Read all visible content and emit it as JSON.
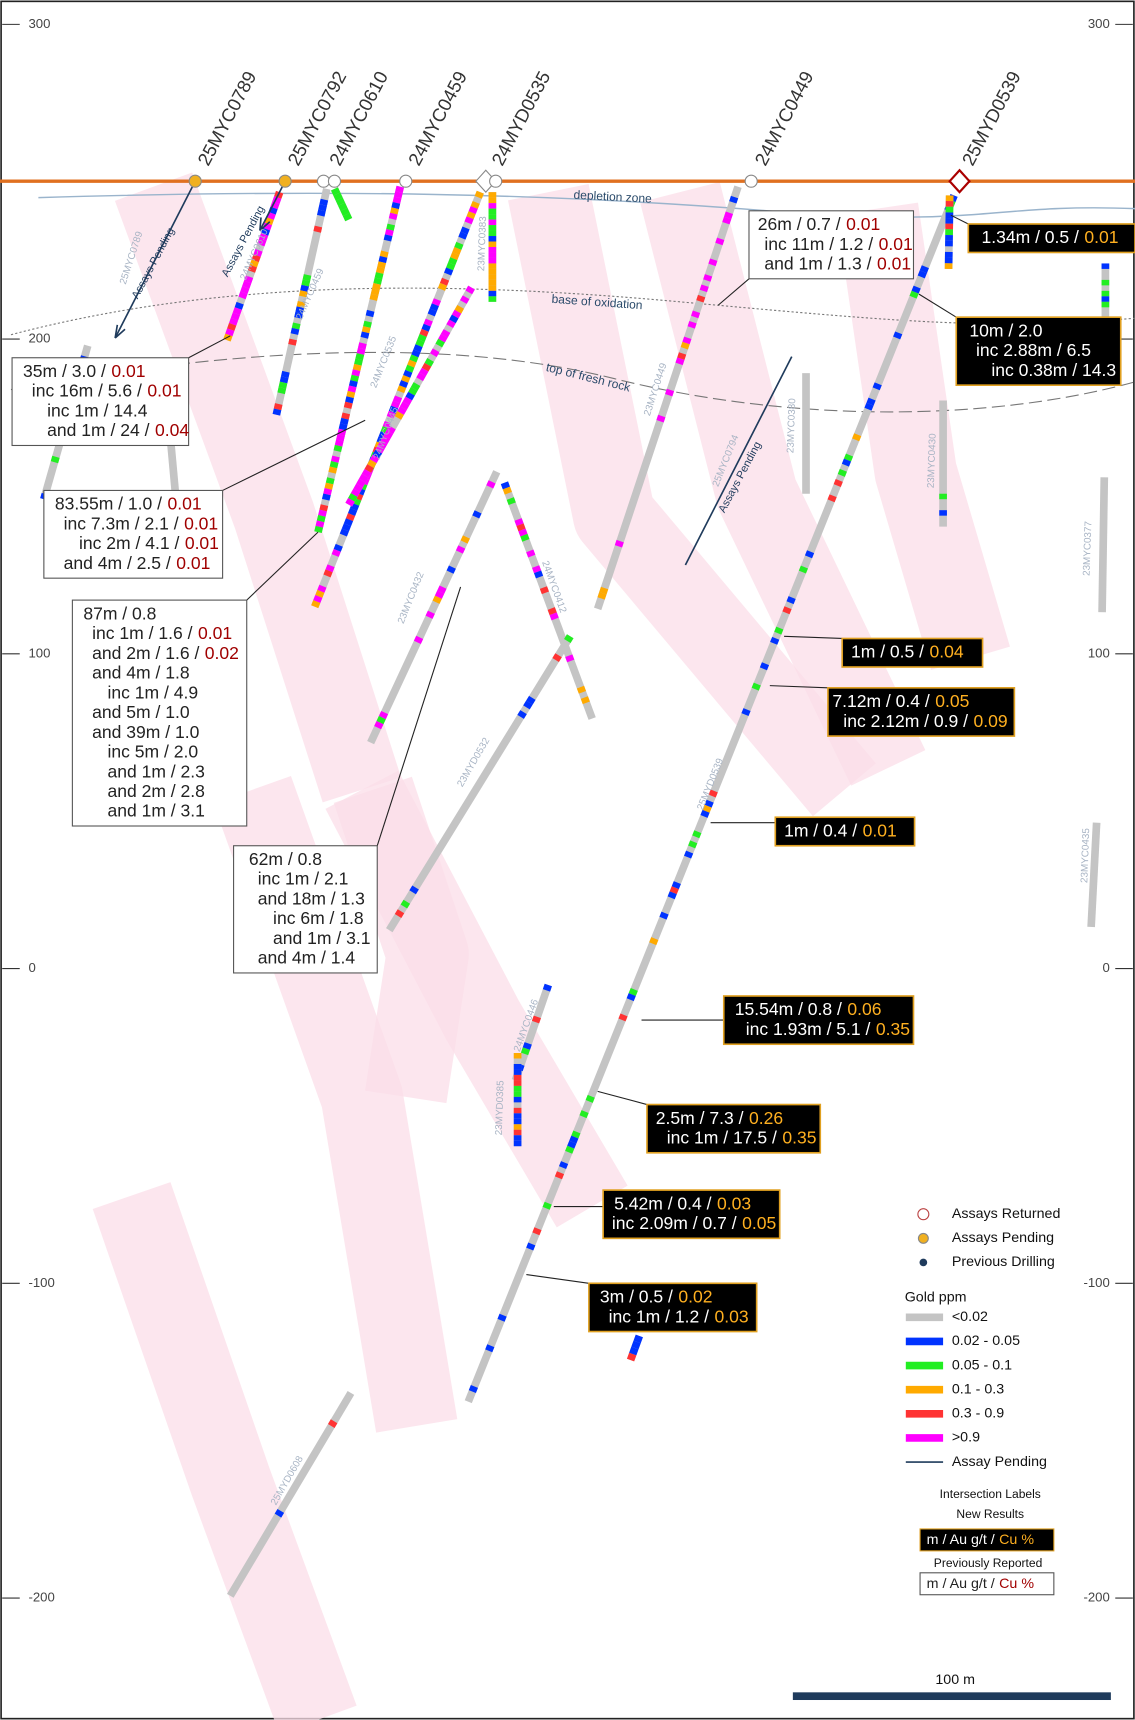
{
  "elevation_ticks": [
    300,
    200,
    100,
    0,
    -100,
    -200
  ],
  "collars": [
    "25MYC0789",
    "25MYC0792",
    "24MYC0610",
    "24MYC0459",
    "24MYD0535",
    "24MYC0449",
    "25MYD0539"
  ],
  "hole_labels": [
    "25MYC0789",
    "24MYC0610",
    "24MYC0459",
    "24MYC0535",
    "24MYC0445",
    "23MYC0383",
    "23MYC0432",
    "24MYC0412",
    "23MYD0532",
    "23MYC0449",
    "25MYC0794",
    "23MYC0380",
    "23MYC0430",
    "23MYC0377",
    "25MYD0539",
    "23MYC0435",
    "24MYC0446",
    "23MYD0385",
    "25MYD0608"
  ],
  "annotations": {
    "depletion": "depletion zone",
    "oxidation": "base of oxidation",
    "fresh": "top of fresh rock",
    "pending": "Assays Pending"
  },
  "intersections": [
    {
      "lines": [
        {
          "main": "1.34m / 0.5 /",
          "cu": "0.01"
        }
      ]
    },
    {
      "lines": [
        {
          "main": "10m / 2.0"
        },
        {
          "main": "inc 2.88m / 6.5"
        },
        {
          "main": "inc 0.38m / 14.3"
        }
      ]
    },
    {
      "lines": [
        {
          "main": "1m / 0.5 /",
          "cu": "0.04"
        }
      ]
    },
    {
      "lines": [
        {
          "main": "7.12m / 0.4 /",
          "cu": "0.05"
        },
        {
          "main": "inc 2.12m / 0.9 /",
          "cu": "0.09"
        }
      ]
    },
    {
      "lines": [
        {
          "main": "1m / 0.4 /",
          "cu": "0.01"
        }
      ]
    },
    {
      "lines": [
        {
          "main": "15.54m / 0.8 /",
          "cu": "0.06"
        },
        {
          "main": "inc 1.93m / 5.1 /",
          "cu": "0.35"
        }
      ]
    },
    {
      "lines": [
        {
          "main": "2.5m / 7.3 /",
          "cu": "0.26"
        },
        {
          "main": "inc 1m / 17.5 /",
          "cu": "0.35"
        }
      ]
    },
    {
      "lines": [
        {
          "main": "5.42m / 0.4 /",
          "cu": "0.03"
        },
        {
          "main": "inc 2.09m / 0.7 /",
          "cu": "0.05"
        }
      ]
    },
    {
      "lines": [
        {
          "main": "3m / 0.5 /",
          "cu": "0.02"
        },
        {
          "main": "inc 1m / 1.2 /",
          "cu": "0.03"
        }
      ]
    },
    {
      "lines": [
        {
          "main": "26m / 0.7 /",
          "cu": "0.01"
        },
        {
          "main": "inc 11m / 1.2 /",
          "cu": "0.01"
        },
        {
          "main": "and 1m / 1.3 /",
          "cu": "0.01"
        }
      ]
    },
    {
      "lines": [
        {
          "main": "35m / 3.0 /",
          "cu": "0.01"
        },
        {
          "main": "inc 16m / 5.6 /",
          "cu": "0.01"
        },
        {
          "main": "inc 1m / 14.4"
        },
        {
          "main": "and 1m / 24 /",
          "cu": "0.04"
        }
      ]
    },
    {
      "lines": [
        {
          "main": "83.55m / 1.0 /",
          "cu": "0.01"
        },
        {
          "main": "inc 7.3m / 2.1 /",
          "cu": "0.01"
        },
        {
          "main": "inc 2m / 4.1 /",
          "cu": "0.01"
        },
        {
          "main": "and 4m / 2.5 /",
          "cu": "0.01"
        }
      ]
    },
    {
      "lines": [
        {
          "main": "87m / 0.8"
        },
        {
          "main": "inc 1m / 1.6 /",
          "cu": "0.01"
        },
        {
          "main": "and 2m / 1.6 /",
          "cu": "0.02"
        },
        {
          "main": "and 4m / 1.8"
        },
        {
          "main": "inc 1m / 4.9"
        },
        {
          "main": "and 5m / 1.0"
        },
        {
          "main": "and 39m / 1.0"
        },
        {
          "main": "inc 5m / 2.0"
        },
        {
          "main": "and 1m / 2.3"
        },
        {
          "main": "and 2m / 2.8"
        },
        {
          "main": "and 1m / 3.1"
        }
      ]
    },
    {
      "lines": [
        {
          "main": "62m / 0.8"
        },
        {
          "main": "inc 1m / 2.1"
        },
        {
          "main": "and 18m / 1.3"
        },
        {
          "main": "inc 6m / 1.8"
        },
        {
          "main": "and 1m / 3.1"
        },
        {
          "main": "and 4m / 1.4"
        }
      ]
    }
  ],
  "legend": {
    "markers": [
      "Assays Returned",
      "Assays Pending",
      "Previous Drilling"
    ],
    "gold_title": "Gold ppm",
    "gold_classes": [
      "<0.02",
      "0.02 - 0.05",
      "0.05 - 0.1",
      "0.1 - 0.3",
      "0.3 - 0.9",
      ">0.9"
    ],
    "pending_line": "Assay Pending",
    "labels_title": "Intersection Labels",
    "new_results": "New Results",
    "key_main": "m / Au g/t /",
    "key_cu": "Cu %",
    "previously": "Previously Reported"
  },
  "scale_bar": "100 m"
}
